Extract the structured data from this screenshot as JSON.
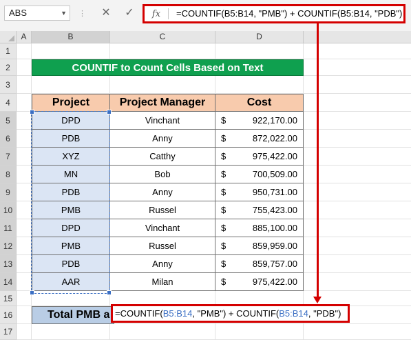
{
  "name_box": {
    "value": "ABS"
  },
  "formula_bar": {
    "cancel_icon": "✕",
    "enter_icon": "✓",
    "fx_label": "fx",
    "formula": "=COUNTIF(B5:B14, \"PMB\") + COUNTIF(B5:B14, \"PDB\")"
  },
  "columns": [
    "A",
    "B",
    "C",
    "D"
  ],
  "rows": [
    "1",
    "2",
    "3",
    "4",
    "5",
    "6",
    "7",
    "8",
    "9",
    "10",
    "11",
    "12",
    "13",
    "14",
    "15",
    "16",
    "17"
  ],
  "title": "COUNTIF to Count Cells Based on Text",
  "table": {
    "headers": [
      "Project",
      "Project Manager",
      "Cost"
    ],
    "rows": [
      {
        "project": "DPD",
        "manager": "Vinchant",
        "currency": "$",
        "cost": "922,170.00"
      },
      {
        "project": "PDB",
        "manager": "Anny",
        "currency": "$",
        "cost": "872,022.00"
      },
      {
        "project": "XYZ",
        "manager": "Catthy",
        "currency": "$",
        "cost": "975,422.00"
      },
      {
        "project": "MN",
        "manager": "Bob",
        "currency": "$",
        "cost": "700,509.00"
      },
      {
        "project": "PDB",
        "manager": "Anny",
        "currency": "$",
        "cost": "950,731.00"
      },
      {
        "project": "PMB",
        "manager": "Russel",
        "currency": "$",
        "cost": "755,423.00"
      },
      {
        "project": "DPD",
        "manager": "Vinchant",
        "currency": "$",
        "cost": "885,100.00"
      },
      {
        "project": "PMB",
        "manager": "Russel",
        "currency": "$",
        "cost": "859,959.00"
      },
      {
        "project": "PDB",
        "manager": "Anny",
        "currency": "$",
        "cost": "859,757.00"
      },
      {
        "project": "AAR",
        "manager": "Milan",
        "currency": "$",
        "cost": "975,422.00"
      }
    ]
  },
  "total": {
    "label": "Total PMB a",
    "edit_parts": [
      "=COUNTIF(",
      "B5:B14",
      ", \"PMB\") + COUNTIF(",
      "B5:B14",
      ", \"PDB\")"
    ]
  },
  "colors": {
    "title_bg": "#0fa04f",
    "header_bg": "#f8cbad",
    "project_bg": "#dbe5f4",
    "total_bg": "#b9cde5",
    "highlight": "#d40000",
    "ref": "#3b6fc4"
  }
}
